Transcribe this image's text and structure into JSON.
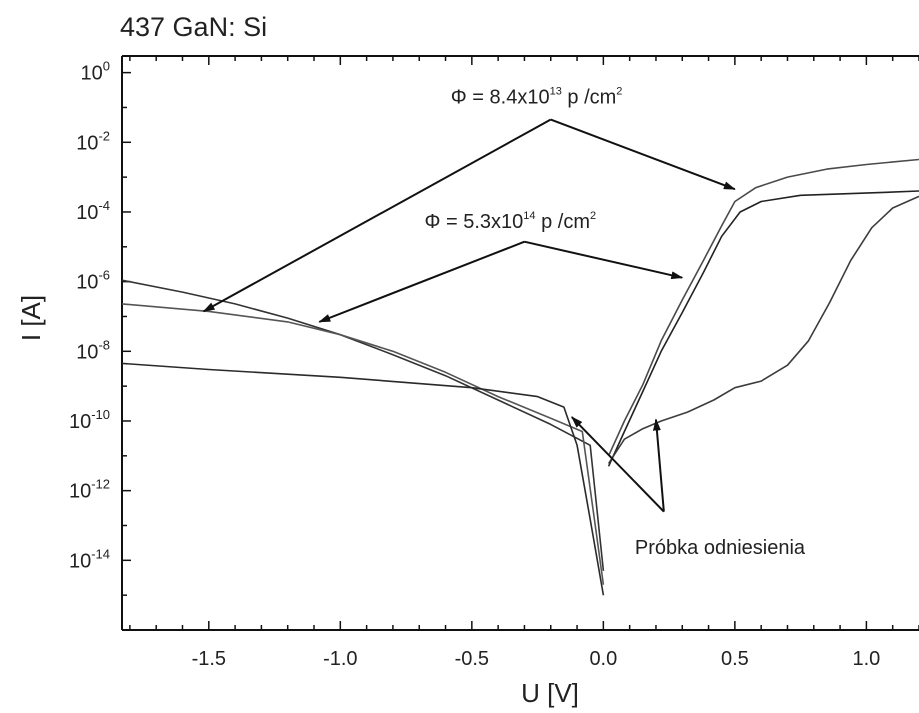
{
  "chart_data": {
    "type": "line",
    "title": "437 GaN: Si",
    "xlabel": "U [V]",
    "ylabel": "I  [A]",
    "yscale": "log",
    "xlim": [
      -1.83,
      1.2
    ],
    "ylim": [
      1e-16,
      3
    ],
    "xticks": [
      "-1.5",
      "-1.0",
      "-0.5",
      "0.0",
      "0.5",
      "1.0"
    ],
    "xtick_values": [
      -1.5,
      -1.0,
      -0.5,
      0.0,
      0.5,
      1.0
    ],
    "yticks": [
      {
        "base": "10",
        "exp": "0",
        "value": 1
      },
      {
        "base": "10",
        "exp": "-2",
        "value": 0.01
      },
      {
        "base": "10",
        "exp": "-4",
        "value": 0.0001
      },
      {
        "base": "10",
        "exp": "-6",
        "value": 1e-06
      },
      {
        "base": "10",
        "exp": "-8",
        "value": 1e-08
      },
      {
        "base": "10",
        "exp": "-10",
        "value": 1e-10
      },
      {
        "base": "10",
        "exp": "-12",
        "value": 1e-12
      },
      {
        "base": "10",
        "exp": "-14",
        "value": 1e-14
      }
    ],
    "series": [
      {
        "color": "#333333",
        "points": [
          [
            -1.83,
            1.1e-06
          ],
          [
            -1.6,
            5e-07
          ],
          [
            -1.4,
            2.3e-07
          ],
          [
            -1.2,
            9e-08
          ],
          [
            -1.0,
            3e-08
          ],
          [
            -0.8,
            8e-09
          ],
          [
            -0.6,
            2e-09
          ],
          [
            -0.4,
            4e-10
          ],
          [
            -0.2,
            8e-11
          ],
          [
            -0.05,
            2e-11
          ],
          [
            0.0,
            5e-15
          ]
        ]
      },
      {
        "color": "#555555",
        "points": [
          [
            -1.83,
            2.3e-07
          ],
          [
            -1.5,
            1.4e-07
          ],
          [
            -1.2,
            7e-08
          ],
          [
            -1.0,
            3e-08
          ],
          [
            -0.8,
            1e-08
          ],
          [
            -0.6,
            2.5e-09
          ],
          [
            -0.4,
            5e-10
          ],
          [
            -0.2,
            1.2e-10
          ],
          [
            -0.08,
            5e-11
          ],
          [
            0.0,
            2e-15
          ]
        ]
      },
      {
        "color": "#2a2a2a",
        "points": [
          [
            -1.83,
            4.5e-09
          ],
          [
            -1.5,
            3e-09
          ],
          [
            -1.0,
            1.8e-09
          ],
          [
            -0.5,
            9e-10
          ],
          [
            -0.25,
            5e-10
          ],
          [
            -0.15,
            2.5e-10
          ],
          [
            -0.1,
            2e-11
          ],
          [
            -0.05,
            1.5e-13
          ],
          [
            0.0,
            1e-15
          ]
        ]
      },
      {
        "color": "#4a4a4a",
        "points": [
          [
            0.02,
            1e-11
          ],
          [
            0.08,
            1e-10
          ],
          [
            0.15,
            1.1e-09
          ],
          [
            0.22,
            2e-08
          ],
          [
            0.3,
            3e-07
          ],
          [
            0.38,
            4e-06
          ],
          [
            0.45,
            4e-05
          ],
          [
            0.5,
            0.0002
          ],
          [
            0.58,
            0.0005
          ],
          [
            0.7,
            0.001
          ],
          [
            0.85,
            0.0017
          ],
          [
            1.0,
            0.0023
          ],
          [
            1.2,
            0.0032
          ]
        ]
      },
      {
        "color": "#222222",
        "points": [
          [
            0.02,
            5e-12
          ],
          [
            0.08,
            5e-11
          ],
          [
            0.15,
            7e-10
          ],
          [
            0.22,
            1e-08
          ],
          [
            0.3,
            1.3e-07
          ],
          [
            0.38,
            1.8e-06
          ],
          [
            0.45,
            2e-05
          ],
          [
            0.52,
            0.0001
          ],
          [
            0.6,
            0.0002
          ],
          [
            0.75,
            0.0003
          ],
          [
            0.9,
            0.00033
          ],
          [
            1.05,
            0.00036
          ],
          [
            1.2,
            0.0004
          ]
        ]
      },
      {
        "color": "#3c3c3c",
        "points": [
          [
            0.02,
            6e-12
          ],
          [
            0.08,
            3e-11
          ],
          [
            0.15,
            6e-11
          ],
          [
            0.22,
            1e-10
          ],
          [
            0.32,
            1.8e-10
          ],
          [
            0.42,
            4e-10
          ],
          [
            0.5,
            9e-10
          ],
          [
            0.6,
            1.4e-09
          ],
          [
            0.7,
            4e-09
          ],
          [
            0.78,
            2e-08
          ],
          [
            0.86,
            2.5e-07
          ],
          [
            0.94,
            4e-06
          ],
          [
            1.02,
            3.5e-05
          ],
          [
            1.1,
            0.00013
          ],
          [
            1.2,
            0.00028
          ]
        ]
      }
    ],
    "annotations": [
      {
        "label": "Φ = 8.4x10",
        "sup": "13",
        "unit": " p /cm",
        "unit_sup": "2",
        "text_at": [
          -0.58,
          0.13
        ],
        "origin": [
          -0.2,
          0.045
        ],
        "arrow_to": [
          [
            -1.52,
            1.4e-07
          ],
          [
            0.5,
            0.00045
          ]
        ]
      },
      {
        "label": "Φ = 5.3x10",
        "sup": "14",
        "unit": " p /cm",
        "unit_sup": "2",
        "text_at": [
          -0.68,
          3.5e-05
        ],
        "origin": [
          -0.3,
          1.4e-05
        ],
        "arrow_to": [
          [
            -1.08,
            7e-08
          ],
          [
            0.3,
            1.3e-06
          ]
        ]
      },
      {
        "label": "Próbka odniesienia",
        "text_at": [
          0.12,
          1.5e-14
        ],
        "origin": [
          0.23,
          2.5e-13
        ],
        "arrow_to": [
          [
            -0.12,
            1.3e-10
          ],
          [
            0.2,
            1.1e-10
          ]
        ]
      }
    ]
  }
}
